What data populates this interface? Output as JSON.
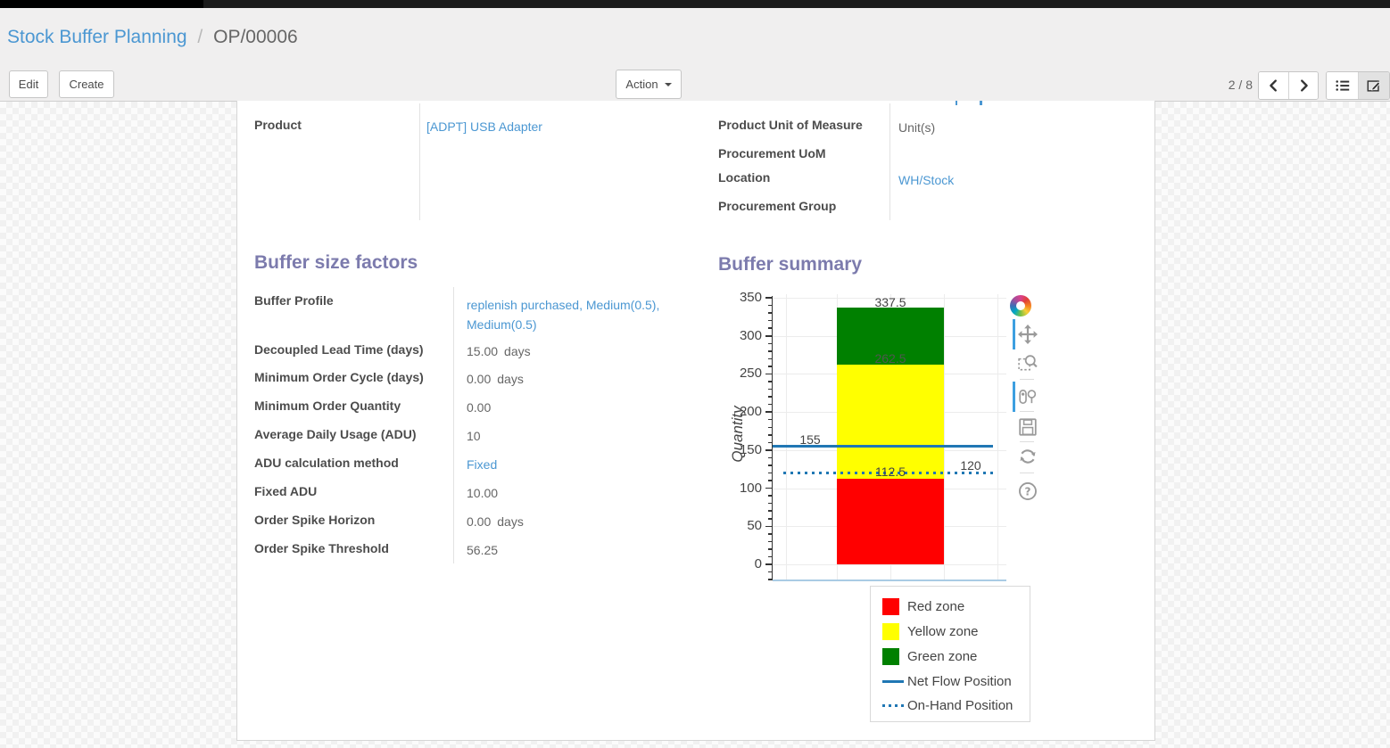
{
  "breadcrumb": {
    "parent": "Stock Buffer Planning",
    "separator": "/",
    "current": "OP/00006"
  },
  "toolbar": {
    "edit_label": "Edit",
    "create_label": "Create",
    "action_label": "Action",
    "pager": "2 / 8"
  },
  "form": {
    "fields_main_left": [
      {
        "label": "Product",
        "value": "[ADPT] USB Adapter",
        "link": true
      }
    ],
    "fields_main_right": [
      {
        "label": "Product Unit of Measure",
        "value": "Unit(s)",
        "link": false
      },
      {
        "label": "Procurement UoM",
        "value": "",
        "link": false
      },
      {
        "label": "Location",
        "value": "WH/Stock",
        "link": true
      },
      {
        "label": "Procurement Group",
        "value": "",
        "link": false
      }
    ],
    "sections": {
      "left_title": "Buffer size factors",
      "right_title": "Buffer summary"
    },
    "buffer_fields": [
      {
        "label": "Buffer Profile",
        "value": "replenish purchased, Medium(0.5), Medium(0.5)",
        "link": true,
        "unit": ""
      },
      {
        "label": "Decoupled Lead Time (days)",
        "value": "15.00",
        "link": false,
        "unit": "days"
      },
      {
        "label": "Minimum Order Cycle (days)",
        "value": "0.00",
        "link": false,
        "unit": "days"
      },
      {
        "label": "Minimum Order Quantity",
        "value": "0.00",
        "link": false,
        "unit": ""
      },
      {
        "label": "Average Daily Usage (ADU)",
        "value": "10",
        "link": false,
        "unit": ""
      },
      {
        "label": "ADU calculation method",
        "value": "Fixed",
        "link": true,
        "unit": ""
      },
      {
        "label": "Fixed ADU",
        "value": "10.00",
        "link": false,
        "unit": ""
      },
      {
        "label": "Order Spike Horizon",
        "value": "0.00",
        "link": false,
        "unit": "days"
      },
      {
        "label": "Order Spike Threshold",
        "value": "56.25",
        "link": false,
        "unit": ""
      }
    ]
  },
  "chart_data": {
    "type": "bar",
    "title": "",
    "ylabel": "Quantity",
    "ylim": [
      -20,
      355
    ],
    "yticks": [
      0,
      50,
      100,
      150,
      200,
      250,
      300,
      350
    ],
    "grid": true,
    "zones": [
      {
        "name": "Red zone",
        "from": 0,
        "to": 112.5,
        "color": "#ff0000"
      },
      {
        "name": "Yellow zone",
        "from": 112.5,
        "to": 262.5,
        "color": "#ffff00"
      },
      {
        "name": "Green zone",
        "from": 262.5,
        "to": 337.5,
        "color": "#008000"
      }
    ],
    "lines": [
      {
        "name": "Net Flow Position",
        "value": 155,
        "style": "solid",
        "color": "#2077b4"
      },
      {
        "name": "On-Hand Position",
        "value": 120,
        "style": "dotted",
        "color": "#2077b4"
      }
    ],
    "annotations": [
      {
        "text": "337.5",
        "v": 337.5,
        "anchor": "bar",
        "muted": false
      },
      {
        "text": "262.5",
        "v": 262.5,
        "anchor": "bar",
        "muted": true
      },
      {
        "text": "155",
        "v": 155,
        "anchor": "left",
        "muted": false
      },
      {
        "text": "112.5",
        "v": 112.5,
        "anchor": "bar",
        "muted": false
      },
      {
        "text": "120",
        "v": 120,
        "anchor": "right",
        "muted": false
      }
    ],
    "legend": [
      {
        "label": "Red zone",
        "swatch": "square",
        "color": "#ff0000"
      },
      {
        "label": "Yellow zone",
        "swatch": "square",
        "color": "#ffff00"
      },
      {
        "label": "Green zone",
        "swatch": "square",
        "color": "#008000"
      },
      {
        "label": "Net Flow Position",
        "swatch": "line",
        "color": "#2077b4"
      },
      {
        "label": "On-Hand Position",
        "swatch": "dots",
        "color": "#2077b4"
      }
    ],
    "legend_position": "bottom-right",
    "modebar_icons": [
      "pan",
      "box-zoom",
      "compare-hover",
      "save",
      "reset-axes",
      "help"
    ]
  },
  "colors": {
    "section_title": "#7c7bad",
    "link": "#4b97d2",
    "red_zone": "#ff0000",
    "yellow_zone": "#ffff00",
    "green_zone": "#008000",
    "position_line": "#2077b4"
  }
}
